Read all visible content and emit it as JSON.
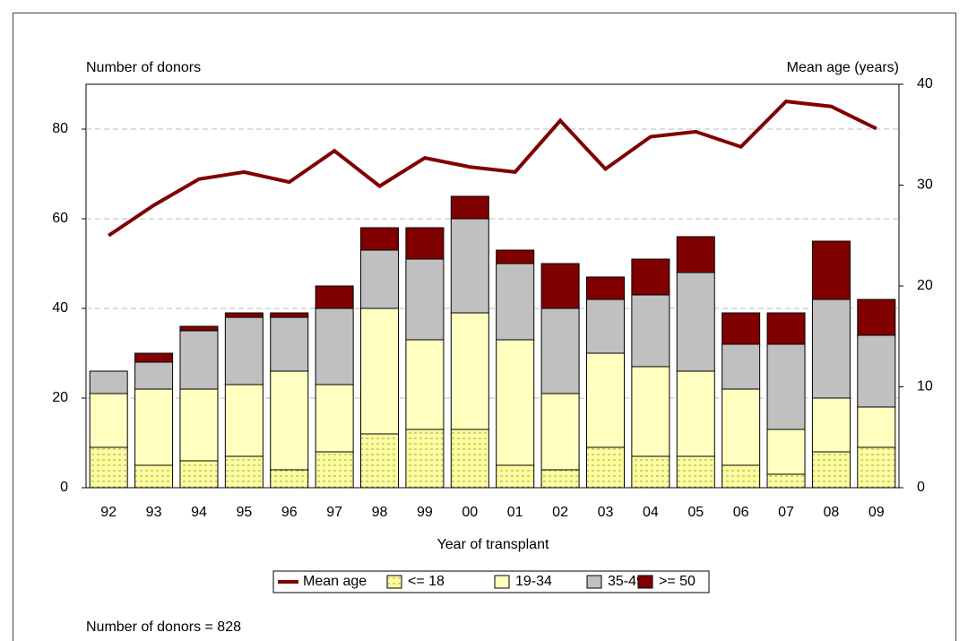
{
  "chart_data": {
    "type": "bar",
    "stacked": true,
    "y_label": "Number of donors",
    "y2_label": "Mean age (years)",
    "x_label": "Year of transplant",
    "footnote": "Number of donors = 828",
    "categories": [
      "92",
      "93",
      "94",
      "95",
      "96",
      "97",
      "98",
      "99",
      "00",
      "01",
      "02",
      "03",
      "04",
      "05",
      "06",
      "07",
      "08",
      "09"
    ],
    "ylim": [
      0,
      90
    ],
    "yticks": [
      0,
      20,
      40,
      60,
      80
    ],
    "y2lim": [
      0,
      40
    ],
    "y2ticks": [
      0,
      10,
      20,
      30,
      40
    ],
    "grid": true,
    "legend": "bottom",
    "series": [
      {
        "name": "Mean age",
        "type": "line",
        "axis": "y2",
        "color": "#800000",
        "values": [
          25.0,
          28.0,
          30.6,
          31.3,
          30.3,
          33.4,
          29.9,
          32.7,
          31.8,
          31.3,
          36.4,
          31.6,
          34.8,
          35.3,
          33.8,
          38.3,
          37.8,
          35.6
        ]
      },
      {
        "name": "<= 18",
        "type": "bar",
        "color": "#ffff99",
        "hatch": true,
        "values": [
          9,
          5,
          6,
          7,
          4,
          8,
          12,
          13,
          13,
          5,
          4,
          9,
          7,
          7,
          5,
          3,
          8,
          9
        ]
      },
      {
        "name": "19-34",
        "type": "bar",
        "color": "#ffffc0",
        "values": [
          12,
          17,
          16,
          16,
          22,
          15,
          28,
          20,
          26,
          28,
          17,
          21,
          20,
          19,
          17,
          10,
          12,
          9
        ]
      },
      {
        "name": "35-49",
        "type": "bar",
        "color": "#c0c0c0",
        "values": [
          5,
          6,
          13,
          15,
          12,
          17,
          13,
          18,
          21,
          17,
          19,
          12,
          16,
          22,
          10,
          19,
          22,
          16
        ]
      },
      {
        "name": ">= 50",
        "type": "bar",
        "color": "#800000",
        "values": [
          0,
          2,
          1,
          1,
          1,
          5,
          5,
          7,
          5,
          3,
          10,
          5,
          8,
          8,
          7,
          7,
          13,
          8
        ]
      }
    ]
  }
}
